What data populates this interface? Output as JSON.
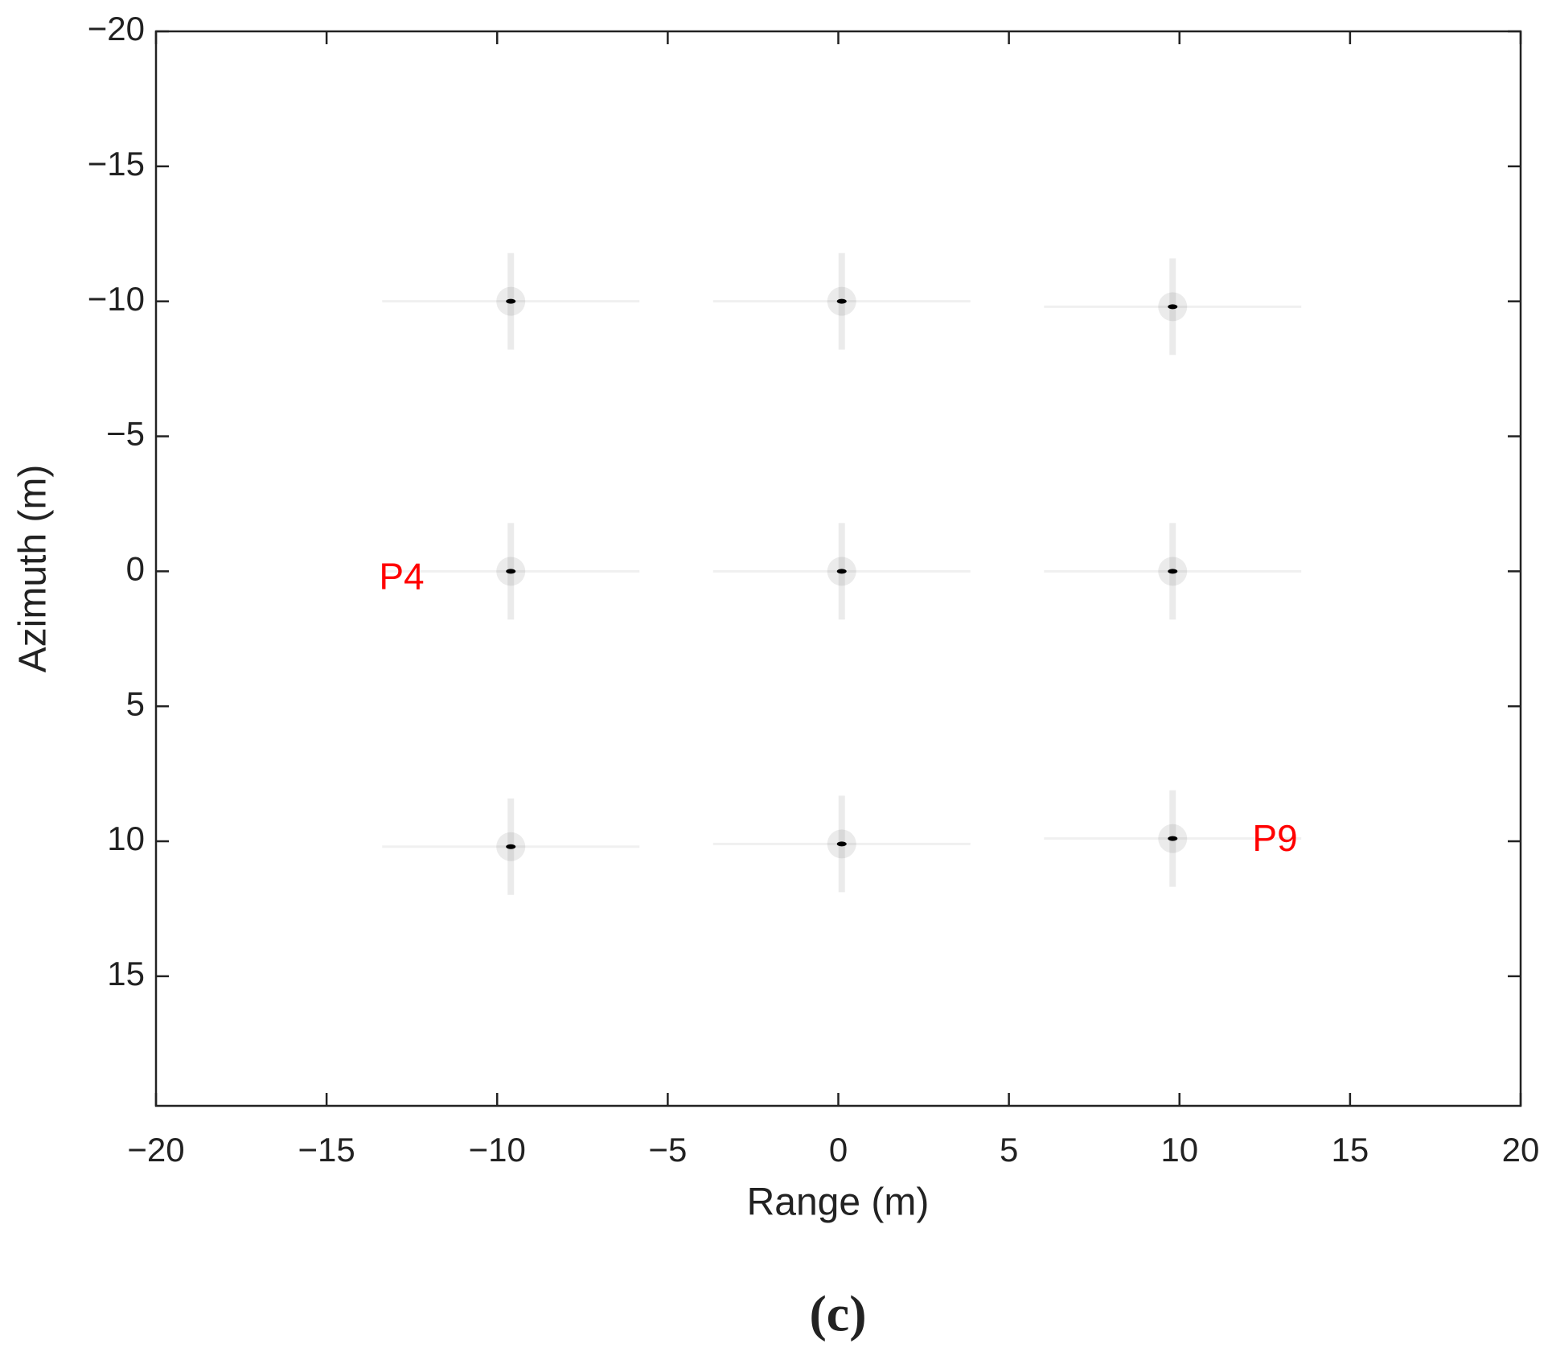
{
  "chart_data": {
    "type": "scatter",
    "xlabel": "Range (m)",
    "ylabel": "Azimuth (m)",
    "caption": "(c)",
    "x": [
      -9.6,
      0.1,
      9.8,
      -9.6,
      0.1,
      9.8,
      -9.6,
      0.1,
      9.8
    ],
    "values": [
      -10,
      -10,
      -9.8,
      0,
      0,
      0,
      10.2,
      10.1,
      9.9
    ],
    "color": "#000000",
    "xlim": [
      -20,
      20
    ],
    "ylim": [
      -20,
      19.8
    ],
    "y_reversed": true,
    "xticks": [
      {
        "value": -20,
        "label": "−20"
      },
      {
        "value": -15,
        "label": "−15"
      },
      {
        "value": -10,
        "label": "−10"
      },
      {
        "value": -5,
        "label": "−5"
      },
      0,
      5,
      10,
      15,
      20
    ],
    "yticks": [
      {
        "value": -20,
        "label": "−20"
      },
      {
        "value": -15,
        "label": "−15"
      },
      {
        "value": -10,
        "label": "−10"
      },
      {
        "value": -5,
        "label": "−5"
      },
      0,
      5,
      10,
      15
    ],
    "annotations": [
      {
        "text": "P4",
        "x": -12.8,
        "y": 0.3,
        "color": "#ff0000"
      },
      {
        "text": "P9",
        "x": 12.8,
        "y": 10,
        "color": "#ff0000"
      }
    ]
  }
}
